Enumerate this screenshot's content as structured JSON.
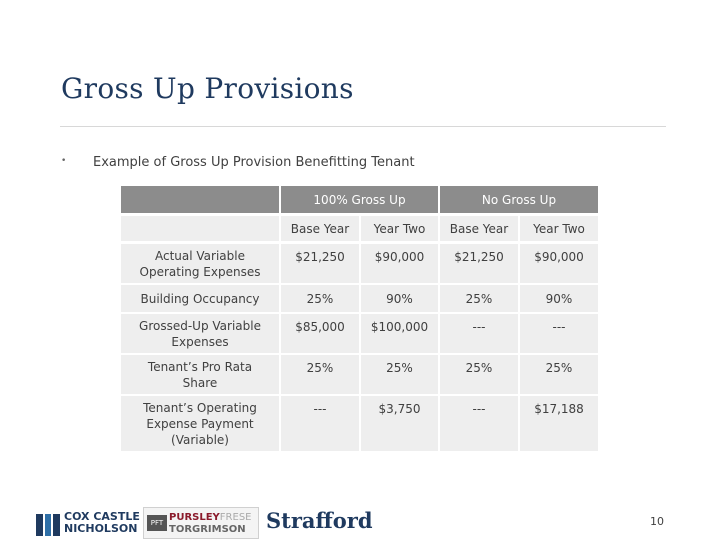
{
  "slide": {
    "title": "Gross Up Provisions",
    "bullet": "•",
    "subtitle": "Example of Gross Up Provision Benefitting Tenant",
    "page_number": "10"
  },
  "table": {
    "group_headers": [
      "100% Gross Up",
      "No Gross Up"
    ],
    "sub_headers": [
      "Base Year",
      "Year Two",
      "Base Year",
      "Year Two"
    ],
    "rows": [
      {
        "label": "Actual Variable Operating Expenses",
        "values": [
          "$21,250",
          "$90,000",
          "$21,250",
          "$90,000"
        ]
      },
      {
        "label": "Building Occupancy",
        "values": [
          "25%",
          "90%",
          "25%",
          "90%"
        ]
      },
      {
        "label": "Grossed-Up Variable Expenses",
        "values": [
          "$85,000",
          "$100,000",
          "---",
          "---"
        ]
      },
      {
        "label": "Tenant’s Pro Rata Share",
        "values": [
          "25%",
          "25%",
          "25%",
          "25%"
        ]
      },
      {
        "label": "Tenant’s Operating Expense Payment (Variable)",
        "values": [
          "---",
          "$3,750",
          "---",
          "$17,188"
        ]
      }
    ]
  },
  "footer": {
    "logo1_line1": "COX CASTLE",
    "logo1_line2": "NICHOLSON",
    "logo2_line1": "PURSLEY",
    "logo2_line1b": "FRESE",
    "logo2_line2": "TORGRIMSON",
    "logo3": "Strafford"
  },
  "colors": {
    "title": "#1f3a5f",
    "header_fill": "#8c8c8c",
    "cell_fill": "#eeeeee",
    "accent_red": "#8b1a2b"
  }
}
